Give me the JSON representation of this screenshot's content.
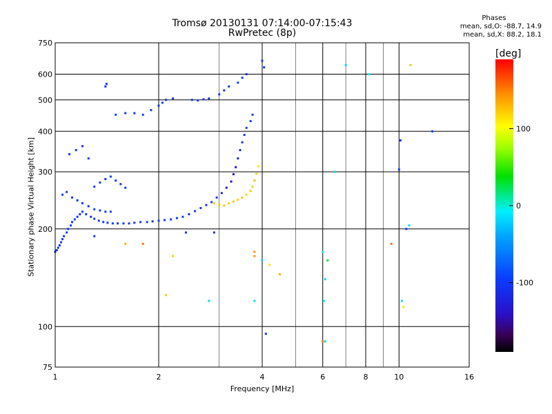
{
  "header": {
    "line1": "Tromsø 20130131 07:14:00-07:15:43",
    "line2": "RwPretec (8p)"
  },
  "stats": {
    "title": "Phases",
    "line_o": "mean, sd,O: -88.7, 14.9",
    "line_x": "mean, sd,X:  88.2, 18.1"
  },
  "colorbar": {
    "unit": "[deg]",
    "ticks": [
      {
        "value": 100,
        "label": "100"
      },
      {
        "value": 0,
        "label": "0"
      },
      {
        "value": -100,
        "label": "-100"
      }
    ],
    "range": [
      -190,
      190
    ]
  },
  "chart_data": {
    "type": "scatter",
    "title": "Tromsø 20130131 07:14:00-07:15:43",
    "subtitle": "RwPretec (8p)",
    "xlabel": "Frequency [MHz]",
    "ylabel": "Stationary phase Virtual Height [km]",
    "xscale": "log",
    "yscale": "log",
    "xlim": [
      1,
      16
    ],
    "ylim": [
      75,
      750
    ],
    "xticks": [
      1,
      2,
      4,
      6,
      8,
      10,
      16
    ],
    "xtick_labels": [
      "1",
      "2",
      "4",
      "6",
      "8",
      "10",
      "16"
    ],
    "yticks": [
      75,
      100,
      200,
      300,
      400,
      500,
      600,
      750
    ],
    "ytick_labels": [
      "75",
      "100",
      "200",
      "300",
      "400",
      "500",
      "600",
      "750"
    ],
    "grid": true,
    "colorscale": "phase [deg], -190 (black) to 190 (red)",
    "series": [
      {
        "points": [
          [
            1.0,
            170,
            -110
          ],
          [
            1.01,
            172,
            -110
          ],
          [
            1.02,
            175,
            -105
          ],
          [
            1.03,
            178,
            -110
          ],
          [
            1.04,
            182,
            -100
          ],
          [
            1.05,
            186,
            -105
          ],
          [
            1.06,
            190,
            -110
          ],
          [
            1.08,
            195,
            -100
          ],
          [
            1.09,
            200,
            -105
          ],
          [
            1.11,
            205,
            -100
          ],
          [
            1.12,
            210,
            -110
          ],
          [
            1.14,
            214,
            -100
          ],
          [
            1.16,
            218,
            -105
          ],
          [
            1.18,
            222,
            -110
          ],
          [
            1.2,
            226,
            -100
          ],
          [
            1.23,
            222,
            -105
          ],
          [
            1.27,
            218,
            -110
          ],
          [
            1.3,
            215,
            -100
          ],
          [
            1.34,
            212,
            -105
          ],
          [
            1.38,
            210,
            -110
          ],
          [
            1.42,
            209,
            -100
          ],
          [
            1.47,
            208,
            -105
          ],
          [
            1.52,
            208,
            -110
          ],
          [
            1.58,
            208,
            -100
          ],
          [
            1.64,
            208,
            -105
          ],
          [
            1.7,
            209,
            -110
          ],
          [
            1.77,
            210,
            -100
          ],
          [
            1.85,
            210,
            -105
          ],
          [
            1.92,
            211,
            -110
          ],
          [
            2.0,
            212,
            -100
          ],
          [
            2.08,
            213,
            -105
          ],
          [
            2.17,
            214,
            -110
          ],
          [
            2.26,
            216,
            -100
          ],
          [
            2.35,
            218,
            -105
          ],
          [
            2.45,
            222,
            -110
          ],
          [
            2.55,
            227,
            -100
          ],
          [
            2.65,
            232,
            -105
          ],
          [
            2.75,
            237,
            -110
          ],
          [
            2.85,
            242,
            -100
          ],
          [
            2.95,
            250,
            -110
          ],
          [
            3.05,
            258,
            -120
          ],
          [
            3.15,
            268,
            -130
          ],
          [
            3.25,
            280,
            -140
          ],
          [
            3.3,
            295,
            -150
          ],
          [
            3.35,
            310,
            -140
          ],
          [
            3.4,
            330,
            -130
          ],
          [
            3.45,
            350,
            -120
          ],
          [
            3.5,
            370,
            -110
          ],
          [
            3.55,
            390,
            -105
          ],
          [
            3.6,
            410,
            -100
          ],
          [
            3.7,
            430,
            -100
          ],
          [
            3.75,
            450,
            -105
          ],
          [
            2.9,
            240,
            120
          ],
          [
            3.0,
            238,
            118
          ],
          [
            3.1,
            236,
            122
          ],
          [
            3.2,
            240,
            115
          ],
          [
            3.3,
            243,
            120
          ],
          [
            3.4,
            246,
            118
          ],
          [
            3.5,
            250,
            122
          ],
          [
            3.6,
            255,
            115
          ],
          [
            3.7,
            262,
            120
          ],
          [
            3.75,
            270,
            118
          ],
          [
            3.8,
            282,
            122
          ],
          [
            3.85,
            296,
            115
          ],
          [
            3.9,
            312,
            110
          ],
          [
            1.05,
            255,
            -100
          ],
          [
            1.08,
            260,
            -105
          ],
          [
            1.12,
            250,
            -110
          ],
          [
            1.16,
            245,
            -100
          ],
          [
            1.2,
            240,
            -105
          ],
          [
            1.25,
            235,
            -110
          ],
          [
            1.3,
            230,
            -100
          ],
          [
            1.35,
            228,
            -105
          ],
          [
            1.4,
            226,
            -110
          ],
          [
            1.45,
            226,
            -100
          ],
          [
            1.3,
            270,
            -100
          ],
          [
            1.35,
            278,
            -105
          ],
          [
            1.4,
            285,
            -110
          ],
          [
            1.45,
            290,
            -100
          ],
          [
            1.5,
            282,
            -105
          ],
          [
            1.55,
            275,
            -110
          ],
          [
            1.6,
            268,
            -100
          ],
          [
            1.1,
            340,
            -100
          ],
          [
            1.15,
            350,
            -105
          ],
          [
            1.2,
            360,
            -110
          ],
          [
            1.25,
            330,
            -100
          ],
          [
            1.5,
            450,
            -100
          ],
          [
            1.6,
            455,
            -105
          ],
          [
            1.7,
            455,
            -110
          ],
          [
            1.8,
            450,
            -100
          ],
          [
            1.9,
            465,
            -105
          ],
          [
            2.0,
            480,
            -110
          ],
          [
            2.05,
            490,
            -100
          ],
          [
            2.1,
            500,
            -105
          ],
          [
            2.2,
            505,
            -110
          ],
          [
            2.5,
            500,
            -100
          ],
          [
            2.6,
            498,
            -105
          ],
          [
            2.7,
            502,
            -110
          ],
          [
            2.8,
            505,
            -100
          ],
          [
            3.0,
            520,
            -100
          ],
          [
            3.1,
            535,
            -105
          ],
          [
            3.2,
            550,
            -110
          ],
          [
            3.4,
            565,
            -100
          ],
          [
            3.5,
            585,
            -105
          ],
          [
            3.6,
            600,
            -110
          ],
          [
            1.4,
            550,
            -110
          ],
          [
            1.41,
            560,
            -105
          ],
          [
            4.0,
            660,
            -100
          ],
          [
            4.05,
            630,
            -105
          ],
          [
            2.4,
            195,
            -100
          ],
          [
            2.9,
            195,
            -110
          ],
          [
            1.3,
            190,
            -105
          ],
          [
            7.0,
            640,
            -20
          ],
          [
            8.2,
            600,
            -10
          ],
          [
            10.8,
            640,
            120
          ],
          [
            12.5,
            400,
            -100
          ],
          [
            10.1,
            375,
            -110
          ],
          [
            10.0,
            305,
            -100
          ],
          [
            6.5,
            300,
            -20
          ],
          [
            6.0,
            170,
            -10
          ],
          [
            6.1,
            140,
            -20
          ],
          [
            6.2,
            160,
            30
          ],
          [
            6.05,
            120,
            -10
          ],
          [
            10.5,
            200,
            -110
          ],
          [
            10.7,
            205,
            -20
          ],
          [
            4.0,
            160,
            -20
          ],
          [
            4.2,
            155,
            110
          ],
          [
            4.5,
            145,
            130
          ],
          [
            3.8,
            120,
            -20
          ],
          [
            2.8,
            120,
            -20
          ],
          [
            2.2,
            165,
            120
          ],
          [
            2.1,
            125,
            120
          ],
          [
            1.6,
            180,
            130
          ],
          [
            1.8,
            180,
            150
          ],
          [
            3.8,
            170,
            140
          ],
          [
            3.8,
            165,
            140
          ],
          [
            4.1,
            95,
            -110
          ],
          [
            6.0,
            90,
            150
          ],
          [
            6.1,
            90,
            -20
          ],
          [
            9.5,
            180,
            150
          ],
          [
            10.2,
            120,
            -20
          ],
          [
            10.3,
            115,
            110
          ]
        ]
      }
    ]
  }
}
